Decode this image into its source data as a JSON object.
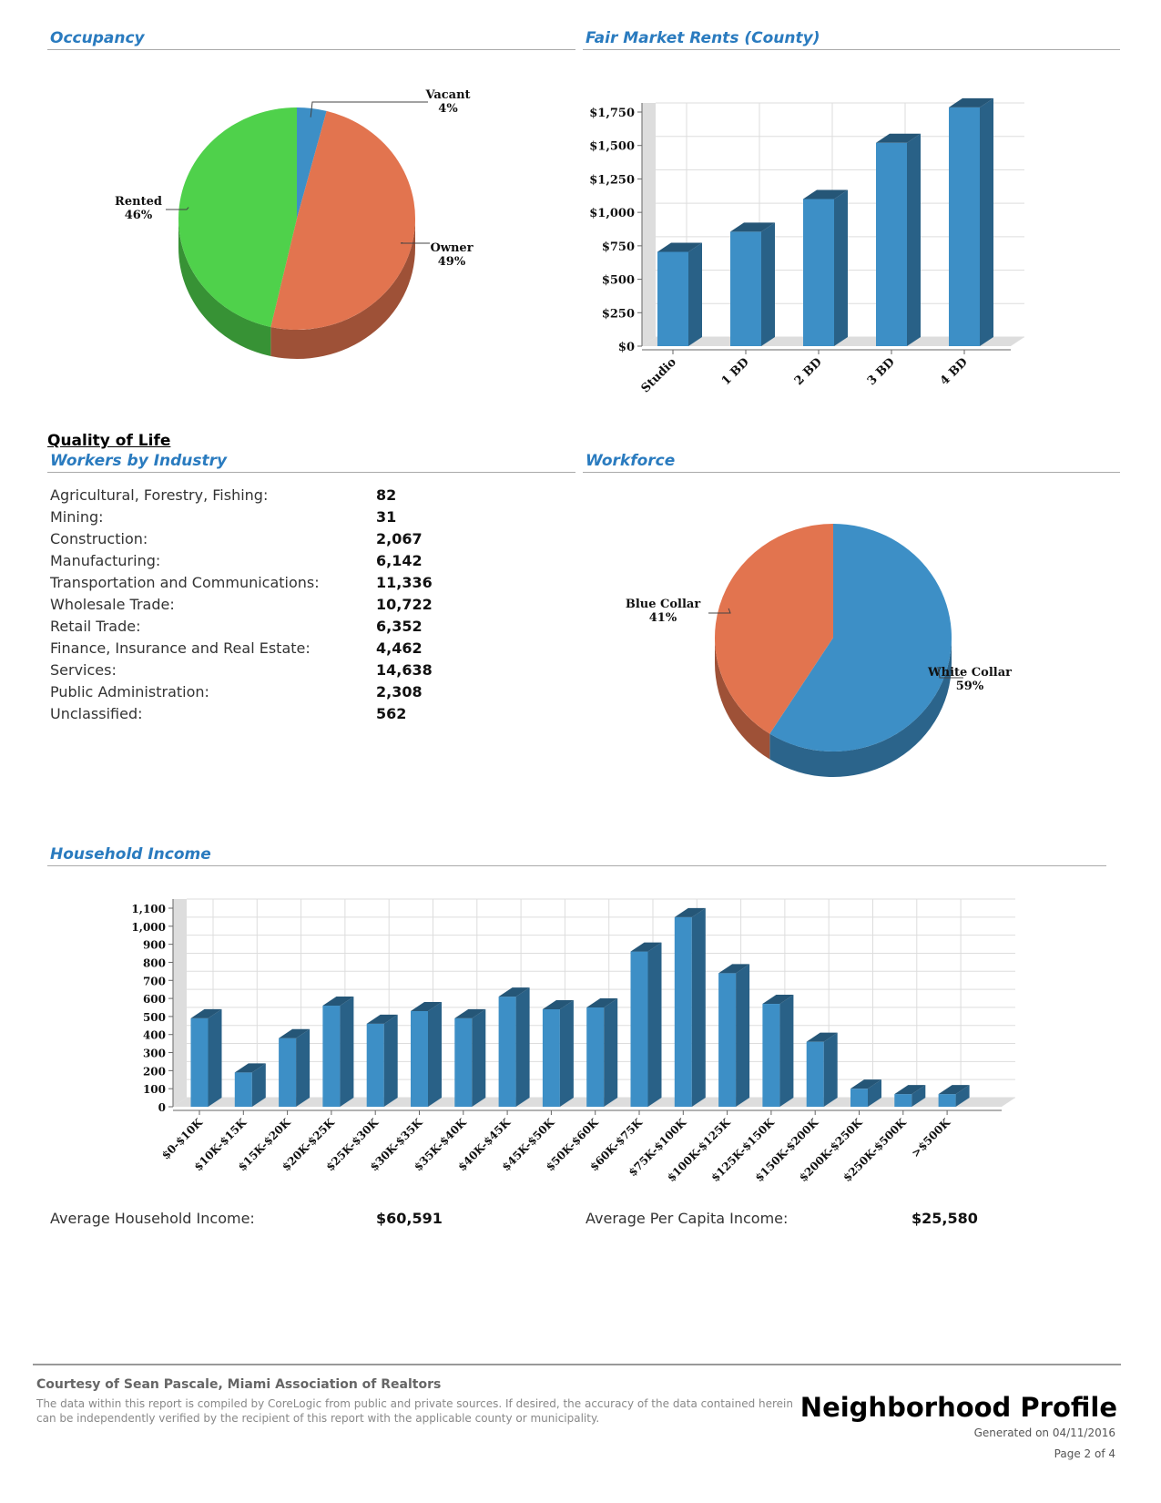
{
  "occupancy": {
    "title": "Occupancy",
    "chart_data": {
      "type": "pie",
      "slices": [
        {
          "label": "Vacant",
          "value": 4,
          "color": "#3d8fc6"
        },
        {
          "label": "Owner",
          "value": 49,
          "color": "#e2744f"
        },
        {
          "label": "Rented",
          "value": 46,
          "color": "#4fd14b"
        }
      ]
    }
  },
  "rents": {
    "title": "Fair Market Rents (County)",
    "chart_data": {
      "type": "bar",
      "categories": [
        "Studio",
        "1 BD",
        "2 BD",
        "3 BD",
        "4 BD"
      ],
      "values": [
        705,
        855,
        1100,
        1520,
        1785
      ],
      "ylim": [
        0,
        1750
      ],
      "ticks": [
        "$0",
        "$250",
        "$500",
        "$750",
        "$1,000",
        "$1,250",
        "$1,500",
        "$1,750"
      ],
      "tick_values": [
        0,
        250,
        500,
        750,
        1000,
        1250,
        1500,
        1750
      ],
      "grid": true,
      "color": "#3d8fc6"
    }
  },
  "quality_title": "Quality of Life",
  "workers": {
    "title": "Workers by Industry",
    "rows": [
      {
        "label": "Agricultural, Forestry, Fishing:",
        "value": "82"
      },
      {
        "label": "Mining:",
        "value": "31"
      },
      {
        "label": "Construction:",
        "value": "2,067"
      },
      {
        "label": "Manufacturing:",
        "value": "6,142"
      },
      {
        "label": "Transportation and Communications:",
        "value": "11,336"
      },
      {
        "label": "Wholesale Trade:",
        "value": "10,722"
      },
      {
        "label": "Retail Trade:",
        "value": "6,352"
      },
      {
        "label": "Finance, Insurance and Real Estate:",
        "value": "4,462"
      },
      {
        "label": "Services:",
        "value": "14,638"
      },
      {
        "label": "Public Administration:",
        "value": "2,308"
      },
      {
        "label": "Unclassified:",
        "value": "562"
      }
    ]
  },
  "workforce": {
    "title": "Workforce",
    "chart_data": {
      "type": "pie",
      "slices": [
        {
          "label": "White Collar",
          "value": 59,
          "color": "#3d8fc6"
        },
        {
          "label": "Blue Collar",
          "value": 41,
          "color": "#e2744f"
        }
      ]
    }
  },
  "income": {
    "title": "Household Income",
    "chart_data": {
      "type": "bar",
      "categories": [
        "$0-$10K",
        "$10K-$15K",
        "$15K-$20K",
        "$20K-$25K",
        "$25K-$30K",
        "$30K-$35K",
        "$35K-$40K",
        "$40K-$45K",
        "$45K-$50K",
        "$50K-$60K",
        "$60K-$75K",
        "$75K-$100K",
        "$100K-$125K",
        "$125K-$150K",
        "$150K-$200K",
        "$200K-$250K",
        "$250K-$500K",
        ">$500K"
      ],
      "values": [
        490,
        190,
        380,
        560,
        460,
        530,
        490,
        610,
        540,
        550,
        860,
        1050,
        740,
        570,
        360,
        100,
        70,
        70
      ],
      "ylim": [
        0,
        1100
      ],
      "ticks": [
        "0",
        "100",
        "200",
        "300",
        "400",
        "500",
        "600",
        "700",
        "800",
        "900",
        "1,000",
        "1,100"
      ],
      "tick_values": [
        0,
        100,
        200,
        300,
        400,
        500,
        600,
        700,
        800,
        900,
        1000,
        1100
      ],
      "grid": true,
      "color": "#3d8fc6"
    },
    "avg_household_label": "Average Household Income:",
    "avg_household_value": "$60,591",
    "avg_capita_label": "Average Per Capita Income:",
    "avg_capita_value": "$25,580"
  },
  "footer": {
    "courtesy": "Courtesy of Sean Pascale, Miami Association of Realtors",
    "disclaimer": "The data within this report is compiled by CoreLogic from public and private sources. If desired, the accuracy of the data contained herein can be independently verified by the recipient of this report with the applicable county or municipality.",
    "title": "Neighborhood Profile",
    "generated": "Generated on 04/11/2016",
    "page": "Page 2 of 4"
  }
}
